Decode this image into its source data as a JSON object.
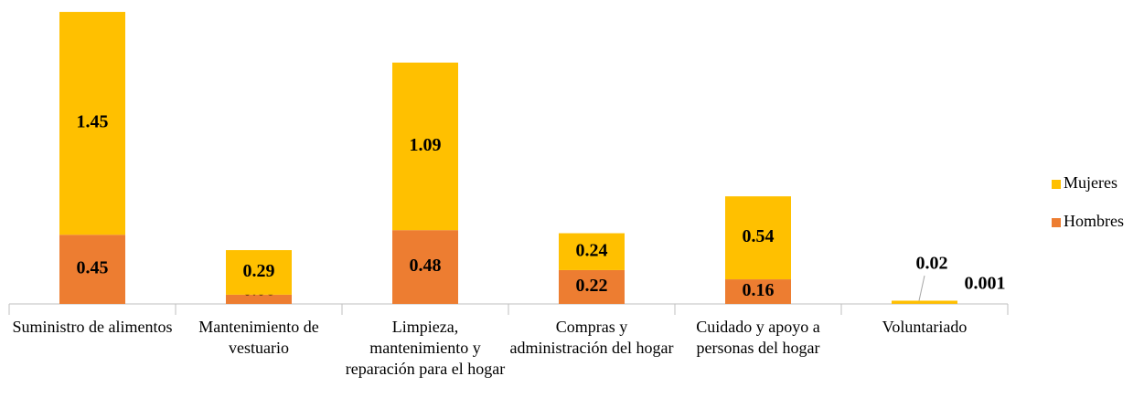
{
  "chart_data": {
    "type": "stacked_bar",
    "categories": [
      "Suministro de alimentos",
      "Mantenimiento de vestuario",
      "Limpieza, mantenimiento y reparación para el hogar",
      "Compras y administración del hogar",
      "Cuidado y apoyo a personas del hogar",
      "Voluntariado"
    ],
    "series": [
      {
        "name": "Hombres",
        "color": "#ED7D31",
        "values": [
          0.45,
          0.06,
          0.48,
          0.22,
          0.16,
          0.001
        ]
      },
      {
        "name": "Mujeres",
        "color": "#FFC000",
        "values": [
          1.45,
          0.29,
          1.09,
          0.24,
          0.54,
          0.02
        ]
      }
    ],
    "legend": "right"
  }
}
